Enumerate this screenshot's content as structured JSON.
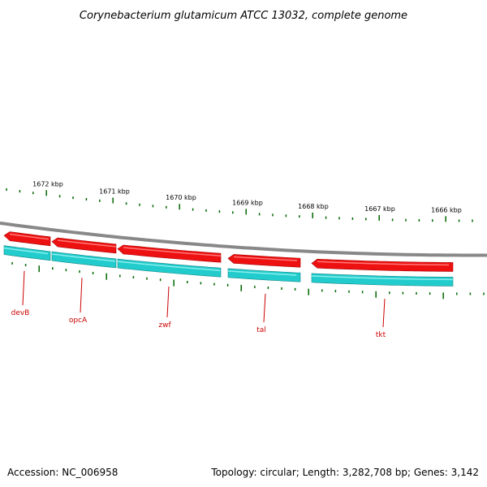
{
  "title": "Corynebacterium glutamicum ATCC 13032, complete genome",
  "colors": {
    "backbone": "#888888",
    "gene_strand": "#ee1111",
    "cds_strand": "#22cccc",
    "tick": "#006600",
    "label": "#cc0000"
  },
  "kbp_labels": [
    "1672 kbp",
    "1671 kbp",
    "1670 kbp",
    "1669 kbp",
    "1668 kbp",
    "1667 kbp",
    "1666 kbp"
  ],
  "genes": [
    {
      "name": "devB",
      "direction": "reverse"
    },
    {
      "name": "opcA",
      "direction": "reverse"
    },
    {
      "name": "zwf",
      "direction": "reverse"
    },
    {
      "name": "tal",
      "direction": "reverse"
    },
    {
      "name": "tkt",
      "direction": "reverse"
    }
  ],
  "footer": {
    "accession": "Accession: NC_006958",
    "topology": "Topology: circular; Length: 3,282,708 bp; Genes: 3,142"
  }
}
